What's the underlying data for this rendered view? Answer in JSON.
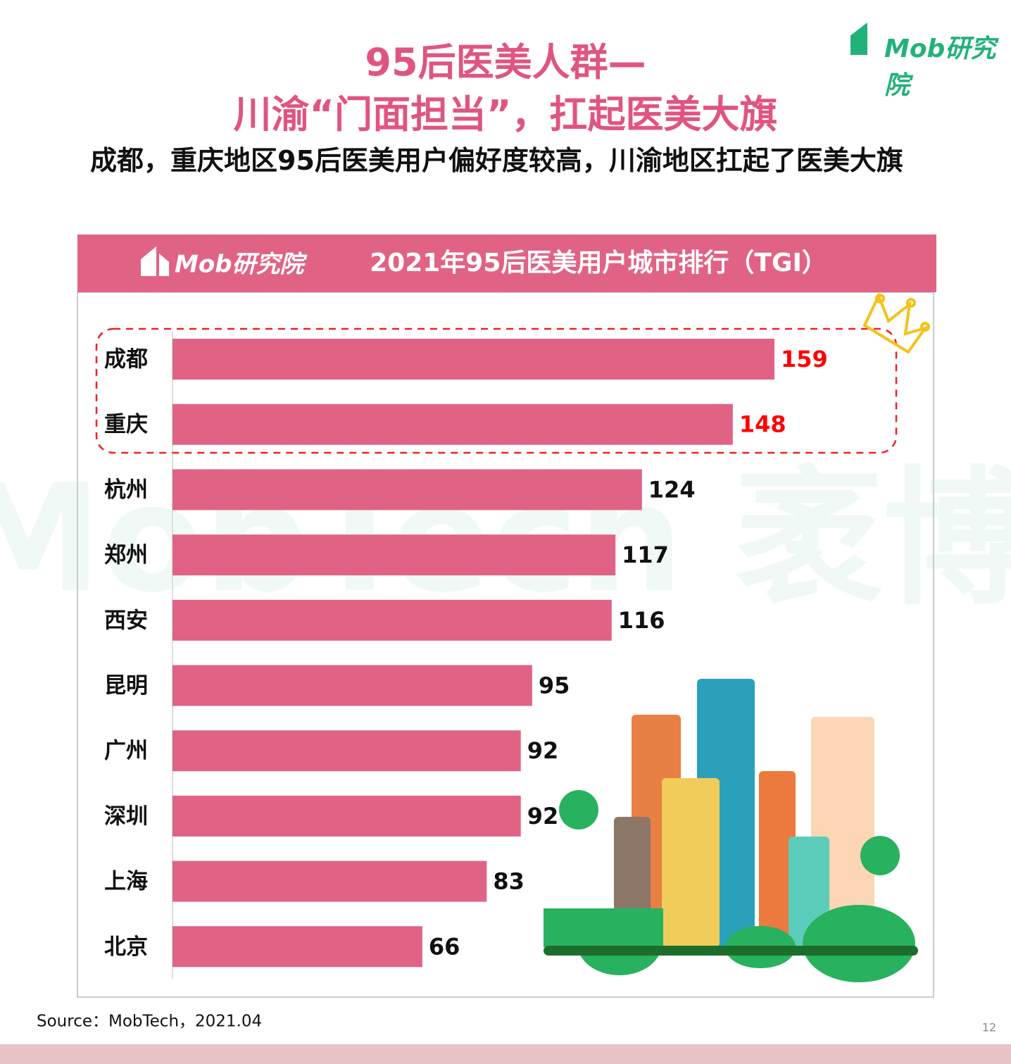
{
  "logo": "Mob研究院",
  "watermark": "MobTech 袤博",
  "title": [
    "95后医美人群—",
    "川渝“门面担当”，扛起医美大旗"
  ],
  "subtitle": "成都，重庆地区95后医美用户偏好度较高，川渝地区扛起了医美大旗",
  "source": "Source：MobTech，2021.04",
  "page_number": "12",
  "chart_data": {
    "type": "hbar",
    "title": "2021年95后医美用户城市排行（TGI）",
    "logo": "Mob研究院",
    "categories": [
      "成都",
      "重庆",
      "杭州",
      "郑州",
      "西安",
      "昆明",
      "广州",
      "深圳",
      "上海",
      "北京"
    ],
    "values": [
      159,
      148,
      124,
      117,
      116,
      95,
      92,
      92,
      83,
      66
    ],
    "color": "#e06385",
    "label_colors": [
      "#ff0000",
      "#ff0000",
      "#111111",
      "#111111",
      "#111111",
      "#111111",
      "#111111",
      "#111111",
      "#111111",
      "#111111"
    ]
  }
}
